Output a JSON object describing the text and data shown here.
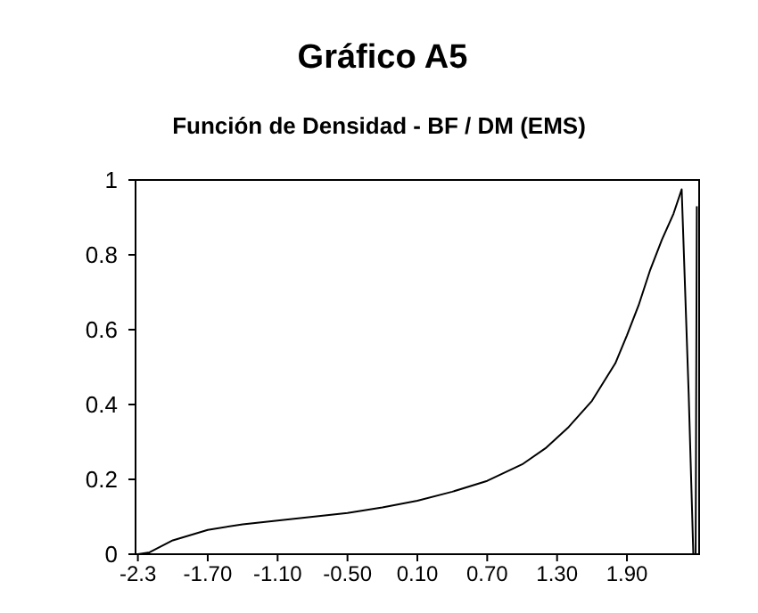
{
  "chart_data": {
    "type": "line",
    "title": "Gráfico A5",
    "subtitle": "Función de Densidad - BF / DM (EMS)",
    "x": [
      -2.3,
      -2.2,
      -2.0,
      -1.7,
      -1.4,
      -1.1,
      -0.8,
      -0.5,
      -0.2,
      0.1,
      0.4,
      0.7,
      1.0,
      1.2,
      1.4,
      1.6,
      1.8,
      1.9,
      2.0,
      2.1,
      2.2,
      2.3,
      2.37,
      2.43,
      2.47,
      2.49,
      2.5
    ],
    "series": [
      {
        "color": "#000000",
        "values": [
          0,
          0.005,
          0.037,
          0.065,
          0.08,
          0.09,
          0.1,
          0.11,
          0.125,
          0.143,
          0.167,
          0.196,
          0.24,
          0.283,
          0.34,
          0.41,
          0.51,
          0.585,
          0.665,
          0.76,
          0.84,
          0.91,
          0.975,
          0.43,
          0,
          0,
          0.93
        ]
      }
    ],
    "xlim": [
      -2.32,
      2.52
    ],
    "ylim": [
      0,
      1
    ],
    "xticks": [
      {
        "value": -2.3,
        "label": "-2.3"
      },
      {
        "value": -1.7,
        "label": "-1.70"
      },
      {
        "value": -1.1,
        "label": "-1.10"
      },
      {
        "value": -0.5,
        "label": "-0.50"
      },
      {
        "value": 0.1,
        "label": "0.10"
      },
      {
        "value": 0.7,
        "label": "0.70"
      },
      {
        "value": 1.3,
        "label": "1.30"
      },
      {
        "value": 1.9,
        "label": "1.90"
      }
    ],
    "yticks": [
      0,
      0.2,
      0.4,
      0.6,
      0.8,
      1
    ],
    "grid": false,
    "marker": "none",
    "line_style": "solid"
  }
}
